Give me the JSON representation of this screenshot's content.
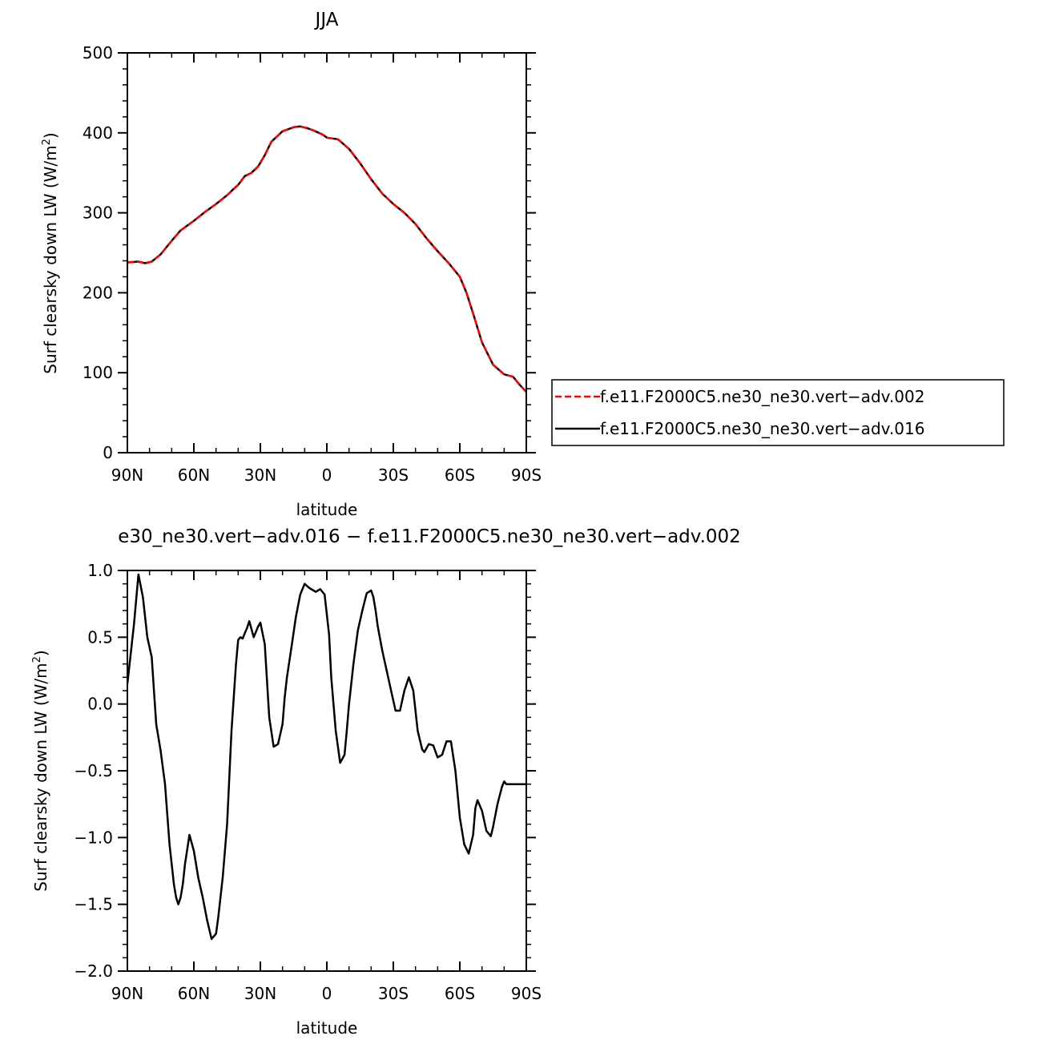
{
  "chart_data": [
    {
      "type": "line",
      "title": "JJA",
      "xlabel": "latitude",
      "ylabel": "Surf clearsky down LW (W/m",
      "ylabel_sup": "2",
      "ylabel_close": ")",
      "xlim": [
        90,
        -90
      ],
      "ylim": [
        0,
        500
      ],
      "x_ticks": [
        90,
        60,
        30,
        0,
        -30,
        -60,
        -90
      ],
      "x_tick_labels": [
        "90N",
        "60N",
        "30N",
        "0",
        "30S",
        "60S",
        "90S"
      ],
      "y_ticks": [
        0,
        100,
        200,
        300,
        400,
        500
      ],
      "y_tick_labels": [
        "0",
        "100",
        "200",
        "300",
        "400",
        "500"
      ],
      "legend_position": "right",
      "series": [
        {
          "name": "f.e11.F2000C5.ne30_ne30.vert−adv.002",
          "color": "#ff0000",
          "dash": "dashed",
          "x": [
            90,
            85,
            82,
            79,
            75,
            70,
            66,
            60,
            55,
            50,
            45,
            42,
            40,
            37,
            34,
            31,
            28,
            25,
            20,
            15,
            12,
            9,
            6,
            2,
            0,
            -5,
            -10,
            -15,
            -20,
            -25,
            -30,
            -35,
            -40,
            -45,
            -50,
            -55,
            -60,
            -63,
            -66,
            -70,
            -75,
            -80,
            -84,
            -87,
            -90
          ],
          "y": [
            238,
            239,
            237,
            239,
            248,
            265,
            278,
            290,
            301,
            311,
            322,
            330,
            335,
            346,
            350,
            358,
            372,
            389,
            402,
            407,
            408,
            406,
            403,
            398,
            394,
            392,
            380,
            362,
            342,
            324,
            311,
            300,
            286,
            268,
            252,
            237,
            220,
            200,
            174,
            138,
            110,
            98,
            95,
            85,
            76
          ]
        },
        {
          "name": "f.e11.F2000C5.ne30_ne30.vert−adv.016",
          "color": "#000000",
          "dash": "solid",
          "x": [
            90,
            85,
            82,
            79,
            75,
            70,
            66,
            60,
            55,
            50,
            45,
            42,
            40,
            37,
            34,
            31,
            28,
            25,
            20,
            15,
            12,
            9,
            6,
            2,
            0,
            -5,
            -10,
            -15,
            -20,
            -25,
            -30,
            -35,
            -40,
            -45,
            -50,
            -55,
            -60,
            -63,
            -66,
            -70,
            -75,
            -80,
            -84,
            -87,
            -90
          ],
          "y": [
            238,
            239,
            237,
            239,
            248,
            265,
            278,
            290,
            301,
            311,
            322,
            330,
            335,
            346,
            350,
            358,
            372,
            389,
            402,
            407,
            408,
            406,
            403,
            398,
            394,
            392,
            380,
            362,
            342,
            324,
            311,
            300,
            286,
            268,
            252,
            237,
            220,
            200,
            174,
            138,
            110,
            98,
            95,
            85,
            76
          ]
        }
      ]
    },
    {
      "type": "line",
      "title": "e30_ne30.vert−adv.016 − f.e11.F2000C5.ne30_ne30.vert−adv.002",
      "xlabel": "latitude",
      "ylabel": "Surf clearsky down LW (W/m",
      "ylabel_sup": "2",
      "ylabel_close": ")",
      "xlim": [
        90,
        -90
      ],
      "ylim": [
        -2,
        1
      ],
      "x_ticks": [
        90,
        60,
        30,
        0,
        -30,
        -60,
        -90
      ],
      "x_tick_labels": [
        "90N",
        "60N",
        "30N",
        "0",
        "30S",
        "60S",
        "90S"
      ],
      "y_ticks": [
        1,
        0.5,
        0,
        -0.5,
        -1,
        -1.5,
        -2
      ],
      "y_tick_labels": [
        "1.0",
        "0.5",
        "0.0",
        "−0.5",
        "−1.0",
        "−1.5",
        "−2.0"
      ],
      "series": [
        {
          "color": "#000000",
          "dash": "solid",
          "x": [
            90,
            87,
            85,
            83,
            81,
            79,
            77,
            75,
            73,
            71,
            69,
            68,
            67,
            66,
            65,
            64,
            62,
            60,
            58,
            56,
            54,
            52,
            50,
            49,
            47,
            45,
            43,
            41,
            40,
            39,
            38,
            37,
            36,
            35,
            33,
            31,
            30,
            28,
            26,
            24,
            22,
            20,
            19,
            18,
            16,
            14,
            12,
            10,
            8,
            6,
            5,
            3,
            1,
            -1,
            -2,
            -4,
            -6,
            -8,
            -9,
            -10,
            -12,
            -14,
            -16,
            -18,
            -20,
            -21,
            -22,
            -23,
            -25,
            -27,
            -29,
            -31,
            -33,
            -35,
            -37,
            -39,
            -41,
            -43,
            -44,
            -46,
            -48,
            -50,
            -52,
            -54,
            -56,
            -58,
            -60,
            -62,
            -64,
            -66,
            -67,
            -68,
            -70,
            -72,
            -74,
            -75,
            -77,
            -79,
            -80,
            -81,
            -82,
            -84,
            -85,
            -86,
            -88,
            -90
          ],
          "y": [
            0.15,
            0.6,
            0.97,
            0.8,
            0.5,
            0.35,
            -0.15,
            -0.35,
            -0.6,
            -1.05,
            -1.35,
            -1.45,
            -1.5,
            -1.45,
            -1.35,
            -1.2,
            -0.98,
            -1.1,
            -1.3,
            -1.45,
            -1.62,
            -1.76,
            -1.72,
            -1.6,
            -1.3,
            -0.9,
            -0.2,
            0.3,
            0.48,
            0.5,
            0.49,
            0.53,
            0.57,
            0.62,
            0.5,
            0.58,
            0.61,
            0.45,
            -0.1,
            -0.32,
            -0.3,
            -0.15,
            0.05,
            0.2,
            0.42,
            0.65,
            0.82,
            0.9,
            0.87,
            0.85,
            0.84,
            0.86,
            0.82,
            0.52,
            0.2,
            -0.2,
            -0.44,
            -0.38,
            -0.2,
            0.0,
            0.3,
            0.55,
            0.7,
            0.83,
            0.85,
            0.8,
            0.7,
            0.58,
            0.4,
            0.25,
            0.1,
            -0.05,
            -0.05,
            0.1,
            0.2,
            0.1,
            -0.2,
            -0.34,
            -0.36,
            -0.3,
            -0.31,
            -0.4,
            -0.38,
            -0.28,
            -0.28,
            -0.5,
            -0.85,
            -1.05,
            -1.12,
            -0.98,
            -0.78,
            -0.72,
            -0.8,
            -0.95,
            -0.99,
            -0.92,
            -0.75,
            -0.62,
            -0.58,
            -0.6,
            -0.6,
            -0.6,
            -0.6,
            -0.6,
            -0.6,
            -0.6
          ]
        }
      ]
    }
  ]
}
